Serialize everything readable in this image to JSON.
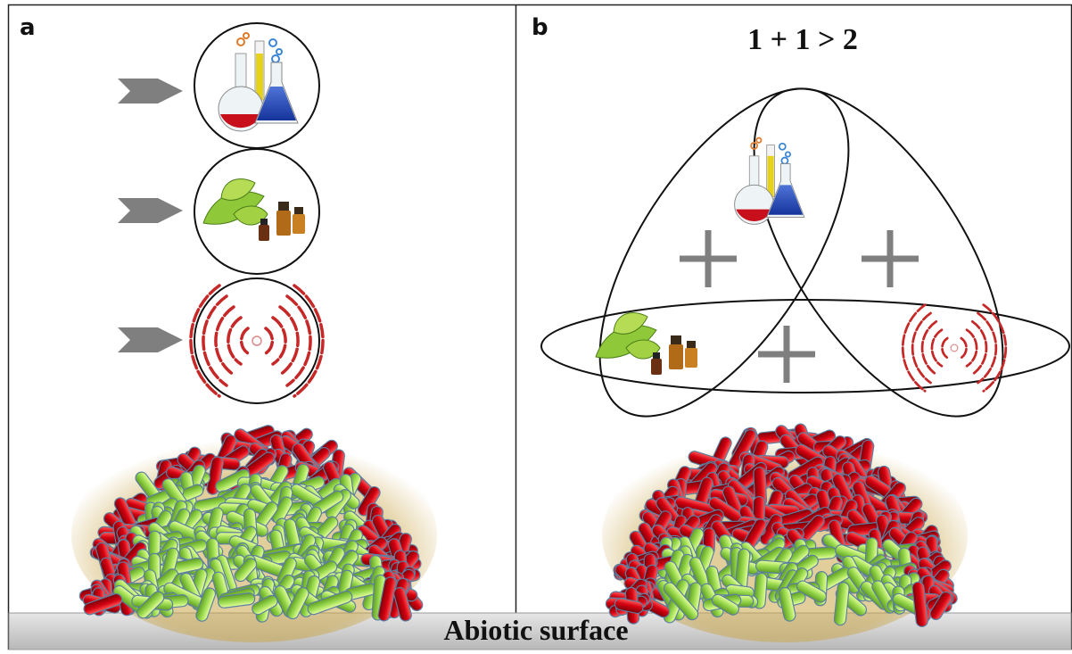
{
  "panels": {
    "a": {
      "label": "a"
    },
    "b": {
      "label": "b",
      "synergy_text": "1 + 1 > 2"
    }
  },
  "surface": {
    "label": "Abiotic surface"
  },
  "icons": {
    "treatment_1": "chemistry-flasks-icon",
    "treatment_2": "plant-extract-essential-oils-icon",
    "treatment_3": "physical-waves-icon",
    "combination_symbol": "plus-icon"
  },
  "colors": {
    "bacteria_outer": "#c0000e",
    "bacteria_inner": "#8fd04a",
    "arrow": "#7f7f7f",
    "surface": "#c8c8c8",
    "waves": "#c62828",
    "plus": "#7f7f7f"
  }
}
